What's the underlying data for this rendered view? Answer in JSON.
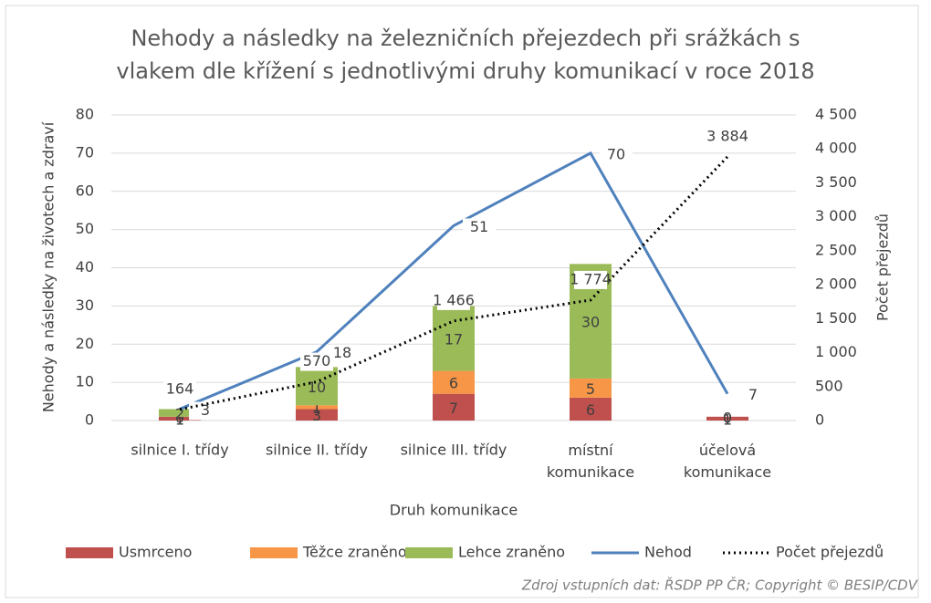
{
  "chart_data": {
    "type": "combo",
    "title": "Nehody a následky na železničních přejezdech při srážkách s vlakem dle křížení s jednotlivými druhy komunikací v roce 2018",
    "x_label": "Druh komunikace",
    "y_label": "Nehody a následky na životech a zdraví",
    "y2_label": "Počet přejezdů",
    "source": "Zdroj vstupních dat: ŘSDP PP ČR; Copyright © BESIP/CDV",
    "categories": [
      "silnice I. třídy",
      "silnice II. třídy",
      "silnice III. třídy",
      "místní komunikace",
      "účelová komunikace"
    ],
    "ylim": [
      0,
      80
    ],
    "yticks": [
      0,
      10,
      20,
      30,
      40,
      50,
      60,
      70,
      80
    ],
    "y2lim": [
      0,
      4500
    ],
    "y2ticks": [
      0,
      500,
      {
        "value": 1000,
        "label": "1 000"
      },
      {
        "value": 1500,
        "label": "1 500"
      },
      {
        "value": 2000,
        "label": "2 000"
      },
      {
        "value": 2500,
        "label": "2 500"
      },
      {
        "value": 3000,
        "label": "3 000"
      },
      {
        "value": 3500,
        "label": "3 500"
      },
      {
        "value": 4000,
        "label": "4 000"
      },
      {
        "value": 4500,
        "label": "4 500"
      }
    ],
    "grid": true,
    "legend": "bottom",
    "series": [
      {
        "name": "Usmrceno",
        "type": "bar",
        "color": "#c0504d",
        "values": [
          1,
          3,
          7,
          6,
          1
        ]
      },
      {
        "name": "Těžce zraněno",
        "type": "bar",
        "color": "#f79646",
        "values": [
          0,
          1,
          6,
          5,
          0
        ]
      },
      {
        "name": "Lehce zraněno",
        "type": "bar",
        "color": "#9bbb59",
        "values": [
          2,
          10,
          17,
          30,
          0
        ]
      },
      {
        "name": "Nehod",
        "type": "line",
        "color": "#4f81bd",
        "values": [
          3,
          18,
          51,
          70,
          7
        ]
      },
      {
        "name": "Počet přejezdů",
        "type": "dotted",
        "color": "#000000",
        "axis": "y2",
        "values": [
          164,
          570,
          1466,
          1774,
          3884
        ],
        "value_labels": [
          "164",
          "570",
          "1 466",
          "1 774",
          "3 884"
        ]
      }
    ]
  }
}
